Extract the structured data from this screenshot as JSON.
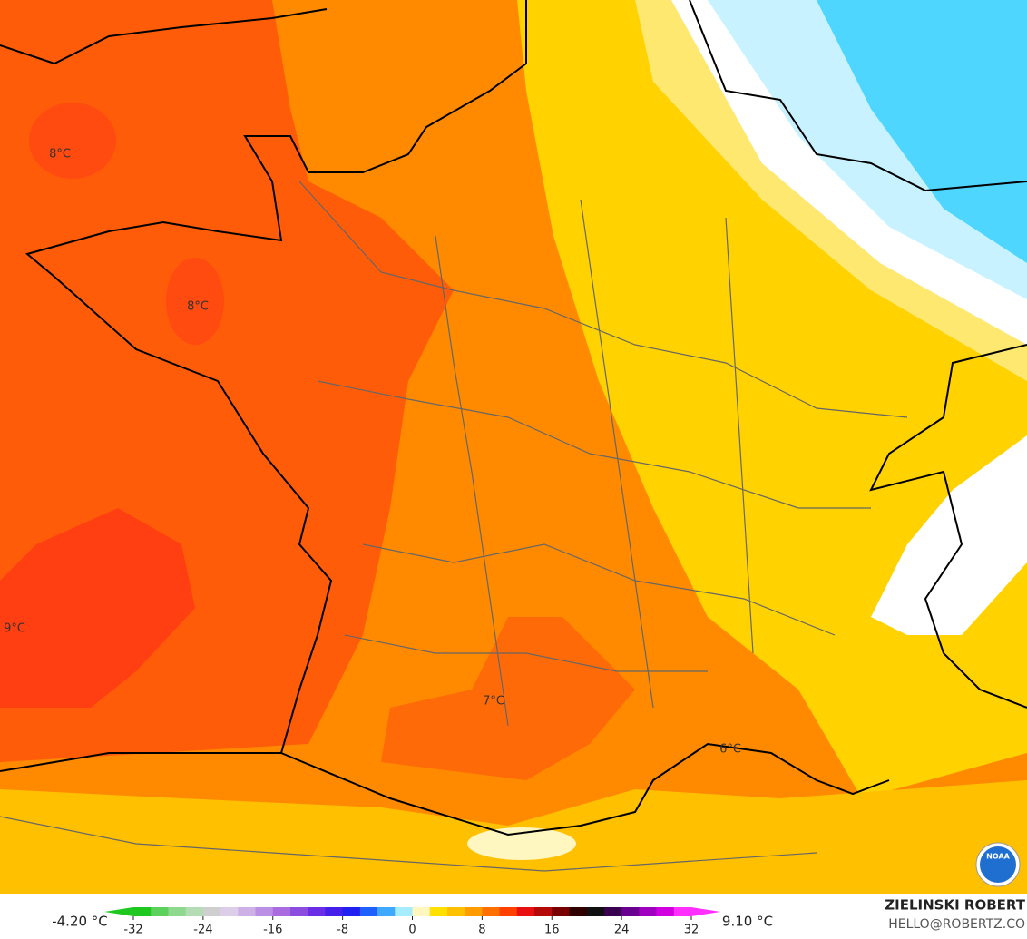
{
  "map": {
    "labels": [
      "8°C",
      "8°C",
      "9°C",
      "7°C",
      "6°C"
    ],
    "legend": {
      "min_label": "-4.20 °C",
      "max_label": "9.10 °C",
      "range": [
        -32,
        32
      ],
      "ticks": [
        -32,
        -24,
        -16,
        -8,
        0,
        8,
        16,
        24,
        32
      ],
      "colors": [
        "#1ec81e",
        "#5cd25c",
        "#8ed98e",
        "#b5ddb5",
        "#cfcfcf",
        "#dccde8",
        "#cdb0e6",
        "#bb8fe3",
        "#a86be0",
        "#8a4de0",
        "#6a2ee6",
        "#4420ea",
        "#2020f0",
        "#2060ff",
        "#3fa8ff",
        "#a8ecff",
        "#fff6c0",
        "#ffe000",
        "#ffc000",
        "#ff9c00",
        "#ff7000",
        "#ff4000",
        "#e81010",
        "#b40a0a",
        "#780000",
        "#300000",
        "#101010",
        "#3a0050",
        "#6a0090",
        "#a000c0",
        "#d000e0",
        "#ff30ff"
      ]
    },
    "credit": {
      "author": "ZIELINSKI ROBERT",
      "contact": "HELLO@ROBERTZ.CO",
      "logo": "NOAA"
    }
  }
}
